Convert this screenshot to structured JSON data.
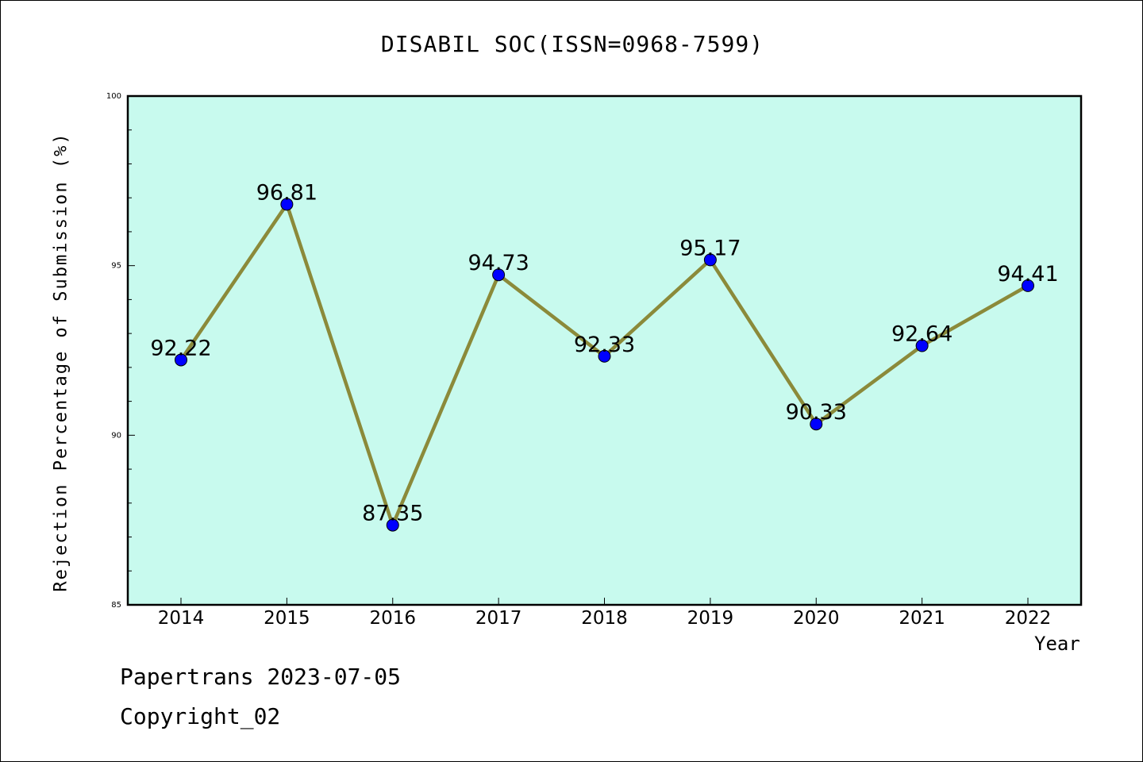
{
  "chart_data": {
    "type": "line",
    "title": "DISABIL SOC(ISSN=0968-7599)",
    "xlabel": "Year",
    "ylabel": "Rejection Percentage of Submission (%)",
    "categories": [
      "2014",
      "2015",
      "2016",
      "2017",
      "2018",
      "2019",
      "2020",
      "2021",
      "2022"
    ],
    "values": [
      92.22,
      96.81,
      87.35,
      94.73,
      92.33,
      95.17,
      90.33,
      92.64,
      94.41
    ],
    "data_labels": [
      "92.22",
      "96.81",
      "87.35",
      "94.73",
      "92.33",
      "95.17",
      "90.33",
      "92.64",
      "94.41"
    ],
    "ylim": [
      85,
      100
    ],
    "yticks": [
      "85",
      "90",
      "95",
      "100"
    ],
    "grid": false,
    "colors": {
      "plot_background": "#c8faee",
      "line": "#8b8a3a",
      "marker": "#0000ff"
    }
  },
  "footer": {
    "line1": "Papertrans 2023-07-05",
    "line2": "Copyright_02"
  }
}
